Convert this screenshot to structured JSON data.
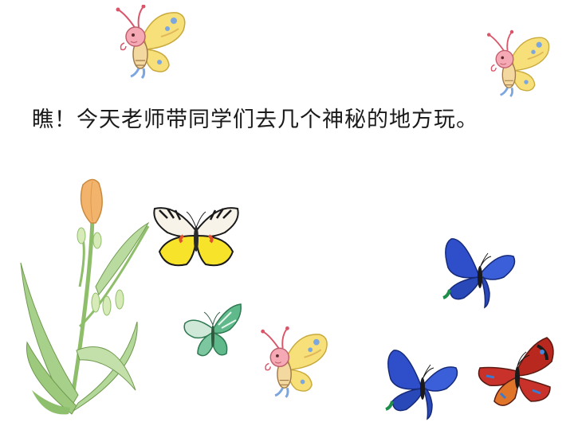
{
  "slide": {
    "caption": "瞧！今天老师带同学们去几个神秘的地方玩。"
  },
  "decorations": {
    "cartoon_butterfly_icon": "cartoon-butterfly-icon",
    "yellow_butterfly_icon": "yellow-butterfly-icon",
    "green_butterfly_icon": "green-butterfly-icon",
    "blue_butterfly_icon": "blue-butterfly-icon",
    "red_butterfly_icon": "red-butterfly-icon",
    "flower_icon": "lily-flower-icon"
  },
  "colors": {
    "cartoon_wing": "#f7e07a",
    "cartoon_wing_edge": "#c8a93c",
    "cartoon_head": "#f4a9b4",
    "yellow_wing": "#f7e32a",
    "green_wing": "#5fb98b",
    "blue_wing": "#2e4fc9",
    "red_wing": "#c9312b",
    "stem": "#8fbe6a",
    "bud": "#f2b46c"
  }
}
